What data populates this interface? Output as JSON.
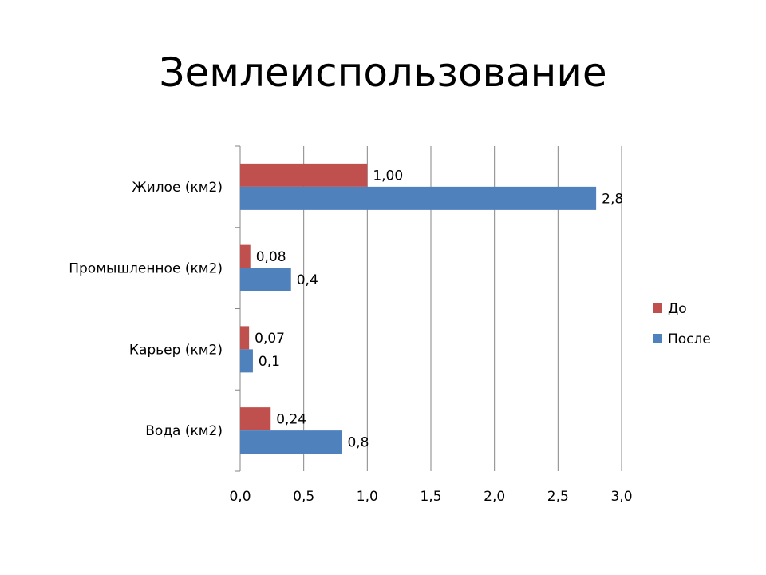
{
  "slide": {
    "title": "Землеиспользование"
  },
  "chart_data": {
    "type": "bar",
    "orientation": "horizontal",
    "categories": [
      "Вода (км2)",
      "Карьер (км2)",
      "Промышленное (км2)",
      "Жилое (км2)"
    ],
    "series": [
      {
        "name": "До",
        "color": "#C0504D",
        "values": [
          0.24,
          0.07,
          0.08,
          1.0
        ],
        "labels": [
          "0,24",
          "0,07",
          "0,08",
          "1,00"
        ]
      },
      {
        "name": "После",
        "color": "#4F81BD",
        "values": [
          0.8,
          0.1,
          0.4,
          2.8
        ],
        "labels": [
          "0,8",
          "0,1",
          "0,4",
          "2,8"
        ]
      }
    ],
    "x_ticks": [
      0,
      0.5,
      1.0,
      1.5,
      2.0,
      2.5,
      3.0
    ],
    "x_tick_labels": [
      "0,0",
      "0,5",
      "1,0",
      "1,5",
      "2,0",
      "2,5",
      "3,0"
    ],
    "xlim": [
      0,
      3.0
    ],
    "grid": "vertical",
    "legend_position": "right"
  }
}
